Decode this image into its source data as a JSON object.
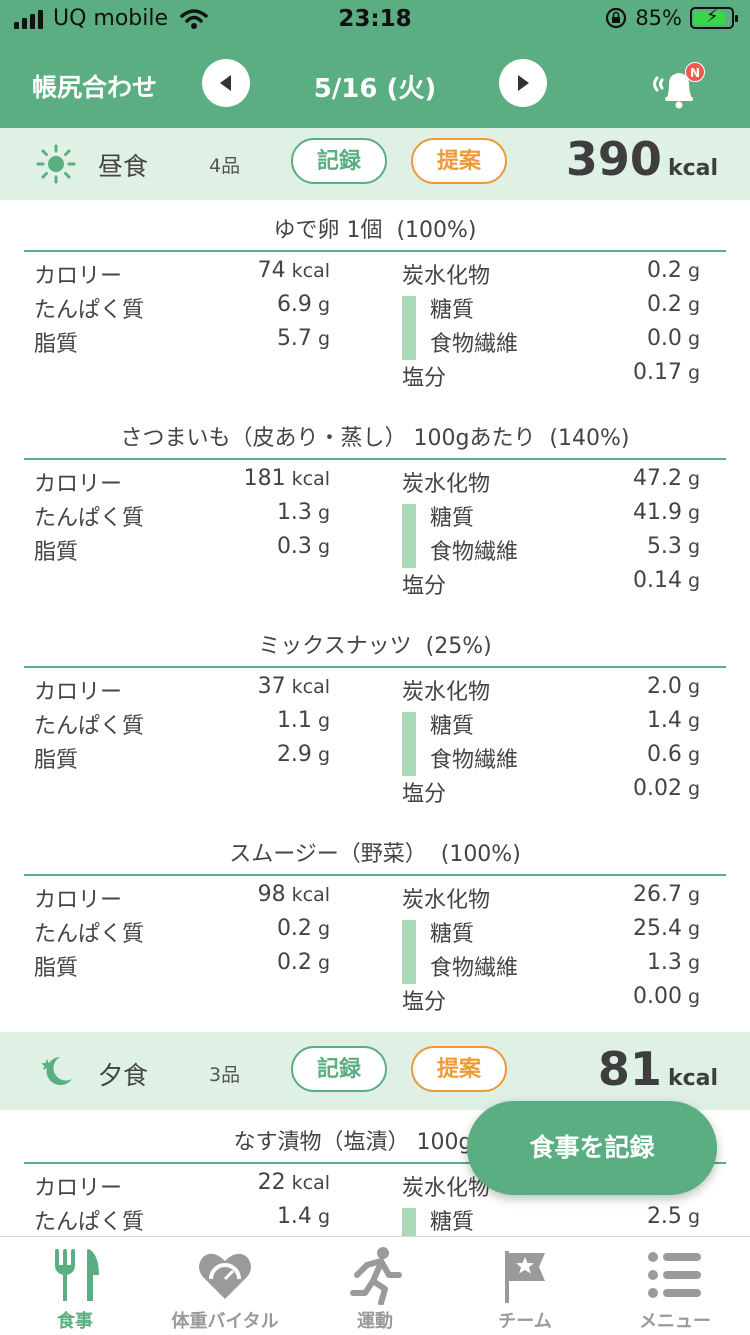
{
  "status_bar": {
    "carrier": "UQ mobile",
    "time": "23:18",
    "battery": "85%",
    "battery_level": 0.85
  },
  "header": {
    "title": "帳尻合わせ",
    "date": "5/16 (火)",
    "notification_badge": "N"
  },
  "meals": [
    {
      "name": "昼食",
      "count": "4品",
      "record_label": "記録",
      "suggest_label": "提案",
      "kcal": "390",
      "kcal_unit": "kcal",
      "icon": "sun-icon",
      "foods": [
        {
          "title": "ゆで卵 1個  (100%)",
          "calorie": "74",
          "protein": "6.9",
          "fat": "5.7",
          "carbs": "0.2",
          "sugar": "0.2",
          "fiber": "0.0",
          "salt": "0.17"
        },
        {
          "title": "さつまいも（皮あり・蒸し） 100gあたり  (140%)",
          "calorie": "181",
          "protein": "1.3",
          "fat": "0.3",
          "carbs": "47.2",
          "sugar": "41.9",
          "fiber": "5.3",
          "salt": "0.14"
        },
        {
          "title": "ミックスナッツ  (25%)",
          "calorie": "37",
          "protein": "1.1",
          "fat": "2.9",
          "carbs": "2.0",
          "sugar": "1.4",
          "fiber": "0.6",
          "salt": "0.02"
        },
        {
          "title": "スムージー（野菜）  (100%)",
          "calorie": "98",
          "protein": "0.2",
          "fat": "0.2",
          "carbs": "26.7",
          "sugar": "25.4",
          "fiber": "1.3",
          "salt": "0.00"
        }
      ]
    },
    {
      "name": "夕食",
      "count": "3品",
      "record_label": "記録",
      "suggest_label": "提案",
      "kcal": "81",
      "kcal_unit": "kcal",
      "icon": "moon-star-icon",
      "foods": [
        {
          "title": "なす漬物（塩漬） 100gあた",
          "calorie": "22",
          "protein": "1.4",
          "carbs_label": "炭水化物",
          "sugar": "2.5"
        }
      ]
    }
  ],
  "labels": {
    "calorie": "カロリー",
    "protein": "たんぱく質",
    "fat": "脂質",
    "carbs": "炭水化物",
    "sugar": "糖質",
    "fiber": "食物繊維",
    "salt": "塩分",
    "kcal": "kcal",
    "g": "g"
  },
  "fab_label": "食事を記録",
  "tabs": [
    {
      "label": "食事",
      "icon": "fork-knife-icon",
      "active": true
    },
    {
      "label": "体重バイタル",
      "icon": "heart-scale-icon",
      "active": false
    },
    {
      "label": "運動",
      "icon": "runner-icon",
      "active": false
    },
    {
      "label": "チーム",
      "icon": "flag-star-icon",
      "active": false
    },
    {
      "label": "メニュー",
      "icon": "menu-list-icon",
      "active": false
    }
  ],
  "colors": {
    "primary": "#5bae82",
    "accent": "#ee9a3a",
    "meal_bar_bg": "#dff0e5",
    "sugar_bar": "#a9d9b6"
  }
}
